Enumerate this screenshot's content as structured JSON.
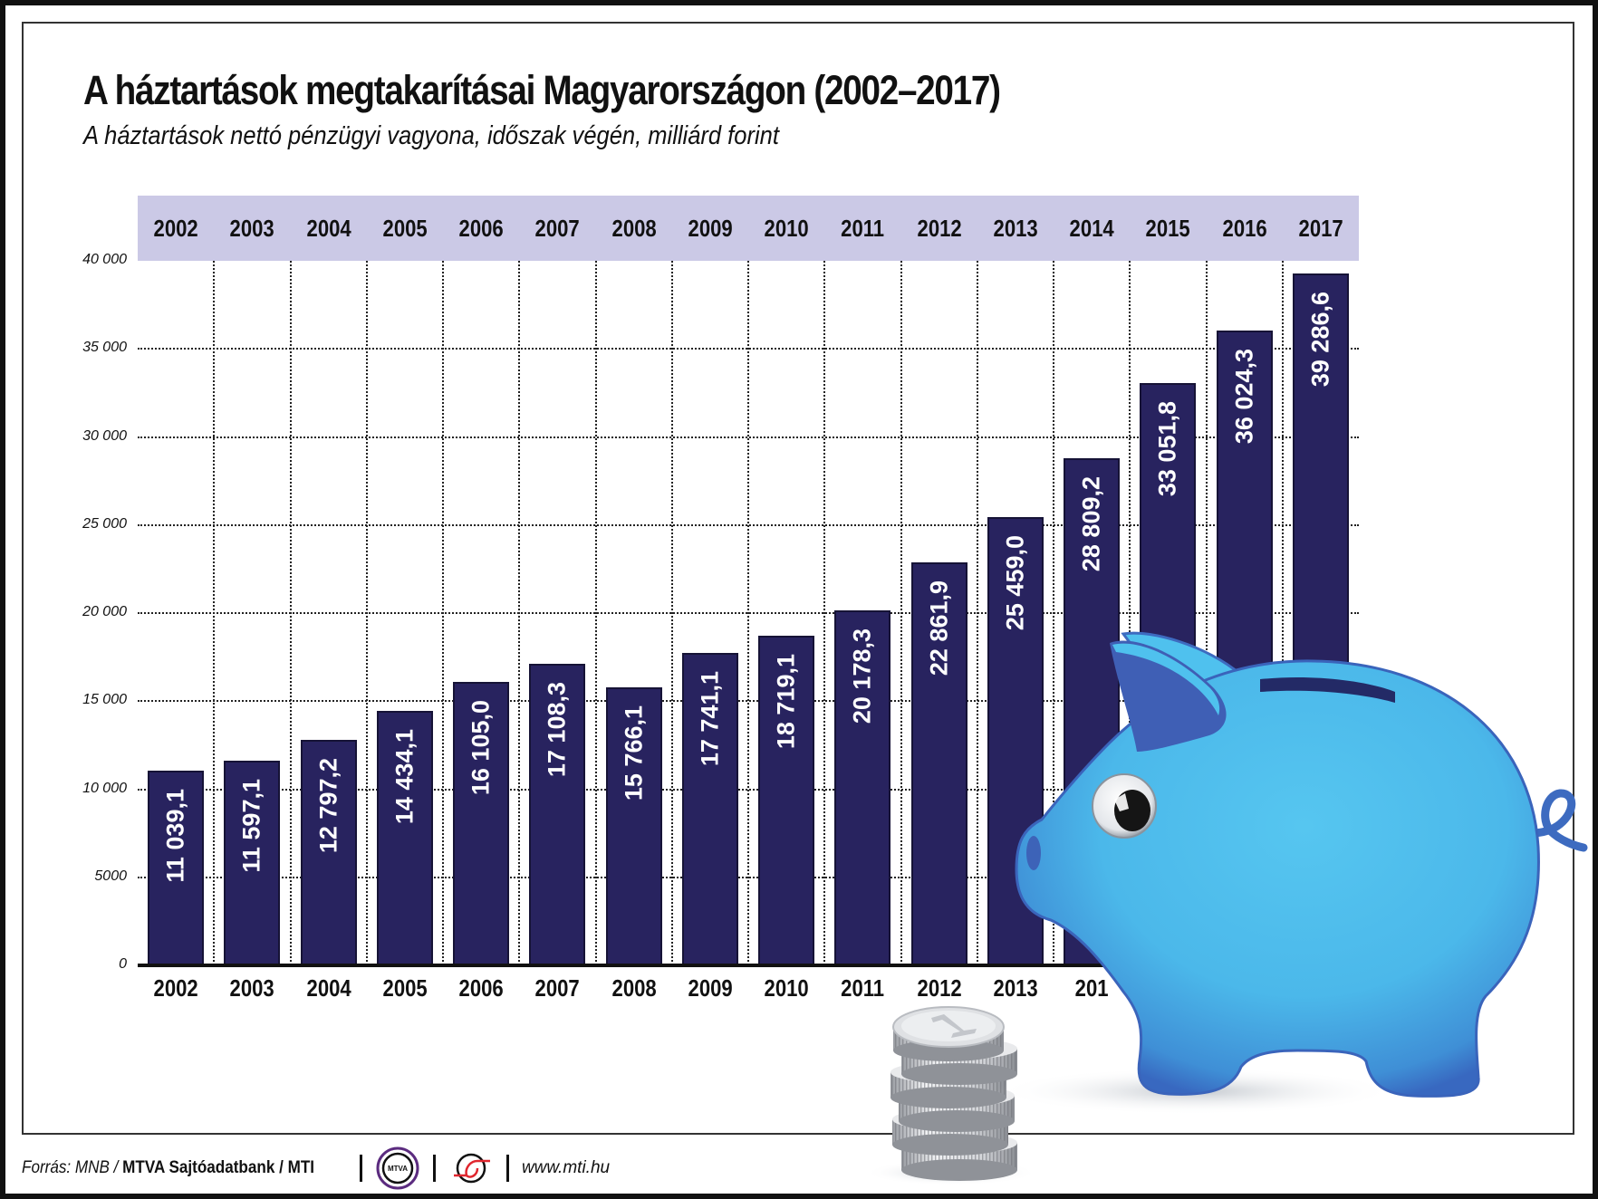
{
  "header": {
    "title": "A háztartások megtakarításai Magyarországon (2002–2017)",
    "subtitle": "A háztartások nettó pénzügyi vagyona, időszak végén, milliárd forint"
  },
  "colors": {
    "bar": "#28235f",
    "year_band": "#cbc9e6",
    "pig": "#4fc1ee",
    "pig_dark": "#3d5fb4",
    "label_text": "#ffffff"
  },
  "y_axis": {
    "ticks": [
      "0",
      "5000",
      "10 000",
      "15 000",
      "20 000",
      "25 000",
      "30 000",
      "35 000",
      "40 000"
    ]
  },
  "years": [
    "2002",
    "2003",
    "2004",
    "2005",
    "2006",
    "2007",
    "2008",
    "2009",
    "2010",
    "2011",
    "2012",
    "2013",
    "2014",
    "2015",
    "2016",
    "2017"
  ],
  "bottom_years": [
    "2002",
    "2003",
    "2004",
    "2005",
    "2006",
    "2007",
    "2008",
    "2009",
    "2010",
    "2011",
    "2012",
    "2013",
    "201"
  ],
  "bar_labels": [
    "11 039,1",
    "11 597,1",
    "12 797,2",
    "14 434,1",
    "16 105,0",
    "17 108,3",
    "15 766,1",
    "17 741,1",
    "18 719,1",
    "20 178,3",
    "22 861,9",
    "25 459,0",
    "28 809,2",
    "33 051,8",
    "36 024,3",
    "39 286,6"
  ],
  "footer": {
    "source_prefix": "Forrás: MNB / ",
    "source_bold": "MTVA Sajtóadatbank",
    "source_suffix": " / MTI",
    "logo1_text": "MTVA",
    "url": "www.mti.hu"
  },
  "chart_data": {
    "type": "bar",
    "title": "A háztartások megtakarításai Magyarországon (2002–2017)",
    "subtitle": "A háztartások nettó pénzügyi vagyona, időszak végén, milliárd forint",
    "categories": [
      "2002",
      "2003",
      "2004",
      "2005",
      "2006",
      "2007",
      "2008",
      "2009",
      "2010",
      "2011",
      "2012",
      "2013",
      "2014",
      "2015",
      "2016",
      "2017"
    ],
    "values": [
      11039.1,
      11597.1,
      12797.2,
      14434.1,
      16105.0,
      17108.3,
      15766.1,
      17741.1,
      18719.1,
      20178.3,
      22861.9,
      25459.0,
      28809.2,
      33051.8,
      36024.3,
      39286.6
    ],
    "xlabel": "",
    "ylabel": "milliárd forint",
    "ylim": [
      0,
      40000
    ],
    "yticks": [
      0,
      5000,
      10000,
      15000,
      20000,
      25000,
      30000,
      35000,
      40000
    ],
    "grid": true,
    "legend": null,
    "source": "Forrás: MNB / MTVA Sajtóadatbank / MTI"
  }
}
